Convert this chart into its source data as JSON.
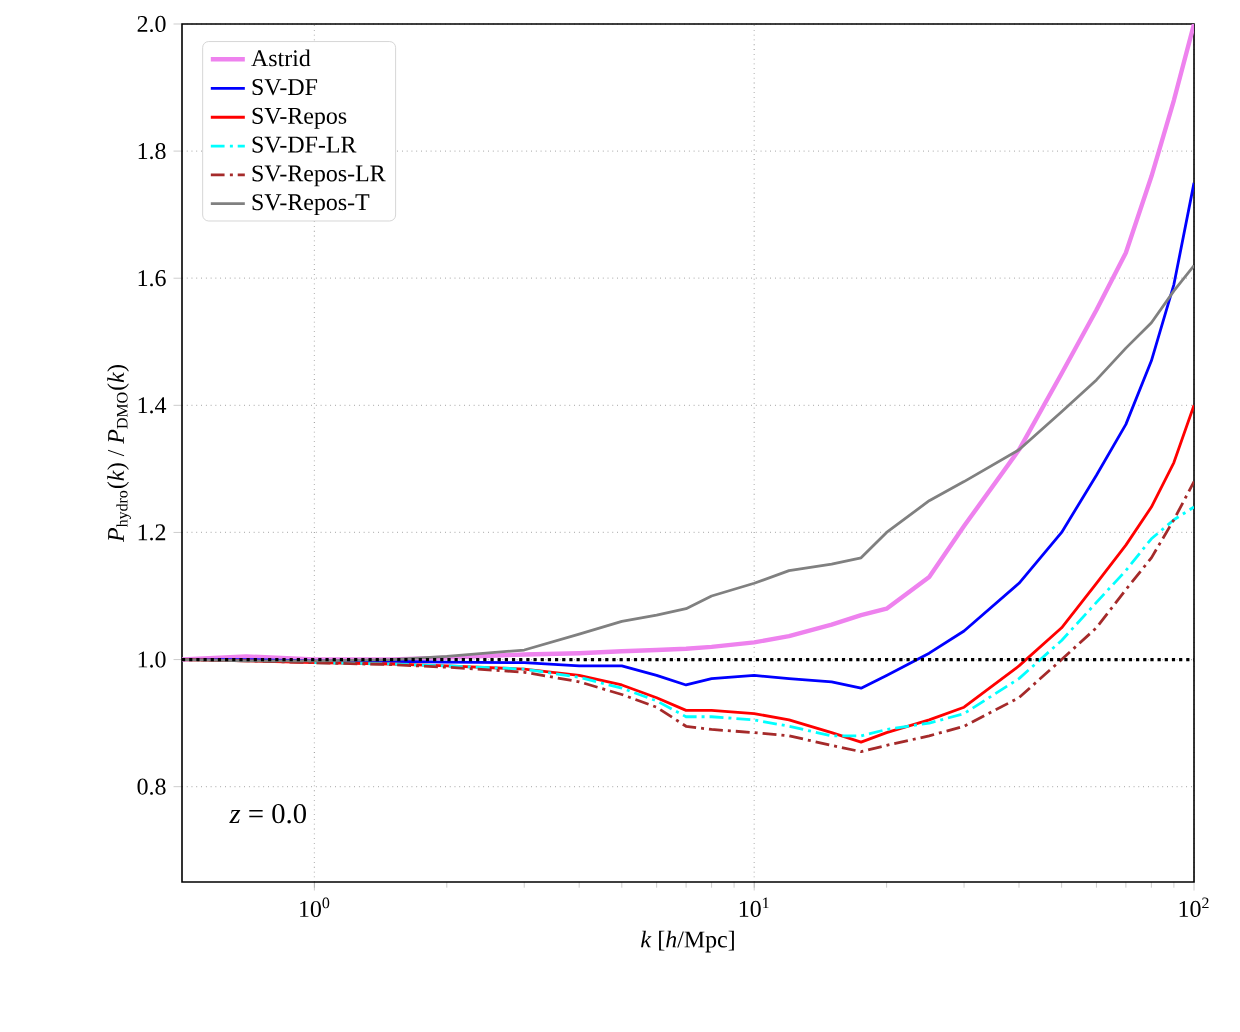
{
  "chart_data": {
    "type": "line",
    "xlabel": "*k* [*h*/Mpc]",
    "ylabel": "*P*$_{hydro}$(*k*) / *P*$_{DMO}$(*k*)",
    "log": "x",
    "grid": true,
    "legend": "top left",
    "xlim": [
      0.5,
      100
    ],
    "ylim": [
      0.65,
      2.0
    ],
    "xticks": [
      {
        "value": 1,
        "label": "10$^{0}$"
      },
      {
        "value": 10,
        "label": "10$^{1}$"
      },
      {
        "value": 100,
        "label": "10$^{2}$"
      }
    ],
    "yticks": [
      0.8,
      {
        "value": 1.0,
        "label": "1.0"
      },
      1.2,
      1.4,
      1.6,
      1.8,
      {
        "value": 2.0,
        "label": "2.0"
      }
    ],
    "x": [
      0.5,
      0.7,
      1,
      1.5,
      2,
      3,
      4,
      5,
      6,
      7,
      8,
      10,
      12,
      15,
      17.5,
      20,
      25,
      30,
      40,
      50,
      60,
      70,
      80,
      90,
      100
    ],
    "series": [
      {
        "name": "Astrid",
        "color": "#ee82ee",
        "line_style": "solid",
        "values": [
          1.0,
          1.005,
          1.0,
          1.0,
          1.003,
          1.008,
          1.01,
          1.013,
          1.015,
          1.017,
          1.02,
          1.027,
          1.037,
          1.055,
          1.07,
          1.08,
          1.13,
          1.21,
          1.33,
          1.45,
          1.55,
          1.64,
          1.76,
          1.88,
          2.0
        ]
      },
      {
        "name": "SV-DF",
        "color": "#0000ff",
        "line_style": "solid",
        "values": [
          1.0,
          1.0,
          0.998,
          0.997,
          0.996,
          0.995,
          0.99,
          0.99,
          0.975,
          0.96,
          0.97,
          0.975,
          0.97,
          0.965,
          0.955,
          0.975,
          1.01,
          1.045,
          1.12,
          1.2,
          1.29,
          1.37,
          1.47,
          1.59,
          1.75
        ]
      },
      {
        "name": "SV-Repos",
        "color": "#ff0000",
        "line_style": "solid",
        "values": [
          1.0,
          0.998,
          0.995,
          0.993,
          0.99,
          0.985,
          0.975,
          0.96,
          0.94,
          0.92,
          0.92,
          0.915,
          0.905,
          0.885,
          0.87,
          0.885,
          0.905,
          0.925,
          0.99,
          1.05,
          1.12,
          1.18,
          1.24,
          1.31,
          1.4
        ]
      },
      {
        "name": "SV-DF-LR",
        "color": "#00ffff",
        "line_style": "dashdot",
        "values": [
          null,
          null,
          0.995,
          0.993,
          0.99,
          0.985,
          0.972,
          0.955,
          0.935,
          0.91,
          0.91,
          0.905,
          0.895,
          0.88,
          0.88,
          0.89,
          0.9,
          0.915,
          0.97,
          1.03,
          1.09,
          1.14,
          1.19,
          1.22,
          1.24
        ]
      },
      {
        "name": "SV-Repos-LR",
        "color": "#a52a2a",
        "line_style": "dashdot",
        "values": [
          1.0,
          0.998,
          0.995,
          0.992,
          0.988,
          0.98,
          0.965,
          0.945,
          0.925,
          0.895,
          0.89,
          0.885,
          0.88,
          0.865,
          0.855,
          0.865,
          0.88,
          0.895,
          0.94,
          1.0,
          1.05,
          1.11,
          1.16,
          1.22,
          1.28
        ]
      },
      {
        "name": "SV-Repos-T",
        "color": "#808080",
        "line_style": "solid",
        "values": [
          1.0,
          0.998,
          0.998,
          1.0,
          1.005,
          1.015,
          1.04,
          1.06,
          1.07,
          1.08,
          1.1,
          1.12,
          1.14,
          1.15,
          1.16,
          1.2,
          1.25,
          1.28,
          1.33,
          1.39,
          1.44,
          1.49,
          1.53,
          1.58,
          1.62
        ]
      }
    ],
    "ref_lines": [
      {
        "axis": "y",
        "value": 1.0,
        "color": "#000000",
        "line_style": "dotted"
      }
    ],
    "annotations": [
      "*z* = 0.0"
    ]
  }
}
